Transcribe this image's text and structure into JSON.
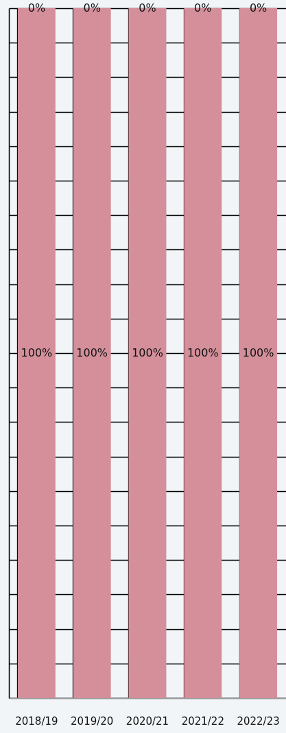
{
  "chart_data": {
    "type": "bar",
    "stacked": true,
    "categories": [
      "2018/19",
      "2019/20",
      "2020/21",
      "2021/22",
      "2022/23"
    ],
    "series": [
      {
        "color": "#d48f9b",
        "values": [
          100,
          100,
          100,
          100,
          100
        ],
        "value_labels": [
          "100%",
          "100%",
          "100%",
          "100%",
          "100%"
        ]
      },
      {
        "color": "#d48f9b",
        "values": [
          0,
          0,
          0,
          0,
          0
        ],
        "value_labels": [
          "0%",
          "0%",
          "0%",
          "0%",
          "0%"
        ]
      }
    ],
    "ylim": [
      0,
      100
    ],
    "yticks": [
      {
        "value": 0,
        "label": null
      },
      {
        "value": 5,
        "label": null
      },
      {
        "value": 10,
        "label": null
      },
      {
        "value": 15,
        "label": null
      },
      {
        "value": 20,
        "label": null
      },
      {
        "value": 25,
        "label": null
      },
      {
        "value": 30,
        "label": null
      },
      {
        "value": 35,
        "label": null
      },
      {
        "value": 40,
        "label": null
      },
      {
        "value": 45,
        "label": null
      },
      {
        "value": 50,
        "label": null
      },
      {
        "value": 55,
        "label": null
      },
      {
        "value": 60,
        "label": null
      },
      {
        "value": 65,
        "label": null
      },
      {
        "value": 70,
        "label": null
      },
      {
        "value": 75,
        "label": null
      },
      {
        "value": 80,
        "label": null
      },
      {
        "value": 85,
        "label": null
      },
      {
        "value": 90,
        "label": null
      },
      {
        "value": 95,
        "label": null
      },
      {
        "value": 100,
        "label": null
      }
    ],
    "tick_labels": "x",
    "grid": true
  }
}
